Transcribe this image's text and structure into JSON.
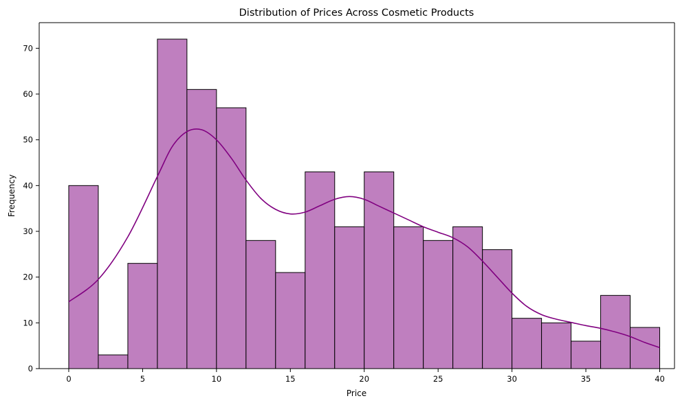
{
  "chart_data": {
    "type": "bar",
    "title": "Distribution of Prices Across Cosmetic Products",
    "xlabel": "Price",
    "ylabel": "Frequency",
    "xlim": [
      -2,
      41
    ],
    "ylim": [
      0,
      75.6
    ],
    "xticks": [
      0,
      5,
      10,
      15,
      20,
      25,
      30,
      35,
      40
    ],
    "yticks": [
      0,
      10,
      20,
      30,
      40,
      50,
      60,
      70
    ],
    "bin_edges": [
      0,
      2,
      4,
      6,
      8,
      10,
      12,
      14,
      16,
      18,
      20,
      22,
      24,
      26,
      28,
      30,
      32,
      34,
      36,
      38,
      40
    ],
    "values": [
      40,
      3,
      23,
      72,
      61,
      57,
      28,
      21,
      43,
      31,
      43,
      31,
      28,
      31,
      26,
      11,
      10,
      6,
      16,
      9
    ],
    "kde": {
      "x": [
        0,
        2,
        4,
        6,
        7,
        8,
        9,
        10,
        11,
        12,
        13,
        14,
        15,
        16,
        17,
        18,
        19,
        20,
        21,
        22,
        23,
        24,
        25,
        26,
        27,
        28,
        29,
        30,
        31,
        32,
        33,
        34,
        35,
        36,
        37,
        38,
        39,
        40
      ],
      "y": [
        14.6,
        19.5,
        28.8,
        42,
        48.5,
        51.8,
        52.2,
        50,
        46,
        41.2,
        37.2,
        34.8,
        33.8,
        34.2,
        35.6,
        37,
        37.6,
        37,
        35.5,
        34,
        32.5,
        31,
        29.8,
        28.6,
        26.6,
        23.5,
        20,
        16.5,
        13.6,
        11.8,
        10.8,
        10.1,
        9.4,
        8.8,
        8,
        7,
        5.7,
        4.6
      ]
    },
    "colors": {
      "bar_fill": "#bf7fbf",
      "bar_edge": "#000000",
      "kde_line": "#800080"
    },
    "grid": false,
    "legend": "none"
  }
}
